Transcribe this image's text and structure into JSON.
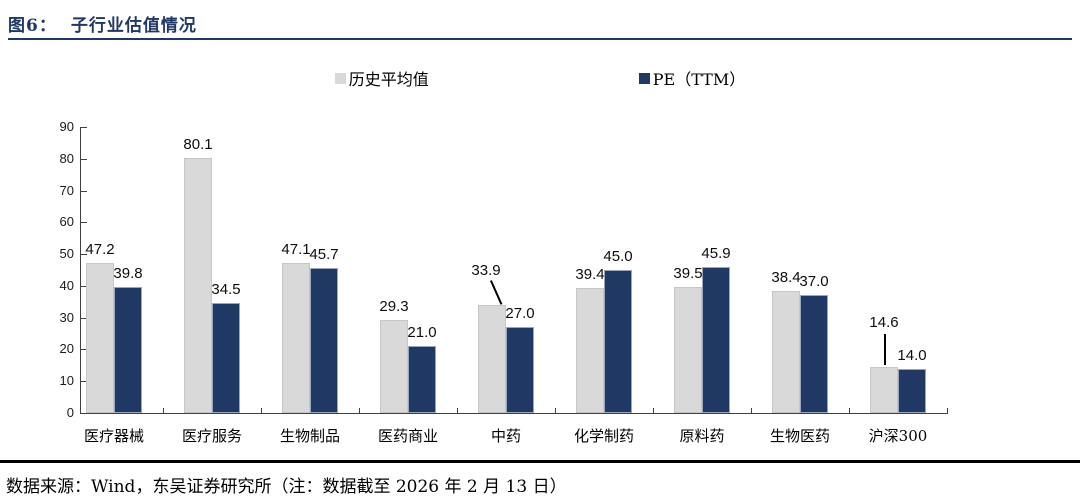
{
  "figure": {
    "id_label": "图6：",
    "title": "子行业估值情况"
  },
  "chart_data": {
    "type": "bar",
    "title": "子行业估值情况",
    "categories": [
      "医疗器械",
      "医疗服务",
      "生物制品",
      "医药商业",
      "中药",
      "化学制药",
      "原料药",
      "生物医药",
      "沪深300"
    ],
    "series": [
      {
        "name": "历史平均值",
        "color": "#d9d9d9",
        "values": [
          47.2,
          80.1,
          47.1,
          29.3,
          33.9,
          39.4,
          39.5,
          38.4,
          14.6
        ]
      },
      {
        "name": "PE（TTM）",
        "color": "#1f3864",
        "values": [
          39.8,
          34.5,
          45.7,
          21.0,
          27.0,
          45.0,
          45.9,
          37.0,
          14.0
        ]
      }
    ],
    "ylim": [
      0,
      90
    ],
    "ytick_step": 10,
    "grid": false,
    "legend_position": "top-center",
    "data_labels": true,
    "callouts": [
      {
        "series": 0,
        "index": 4,
        "type": "diagonal"
      },
      {
        "series": 0,
        "index": 8,
        "type": "vertical"
      }
    ]
  },
  "colors": {
    "accent_navy": "#1f3864",
    "bar_gray": "#d9d9d9",
    "axis": "#404040",
    "footer_rule": "#000000"
  },
  "footer": {
    "text": "数据来源：Wind，东吴证券研究所（注：数据截至 2026 年 2 月 13 日）"
  }
}
